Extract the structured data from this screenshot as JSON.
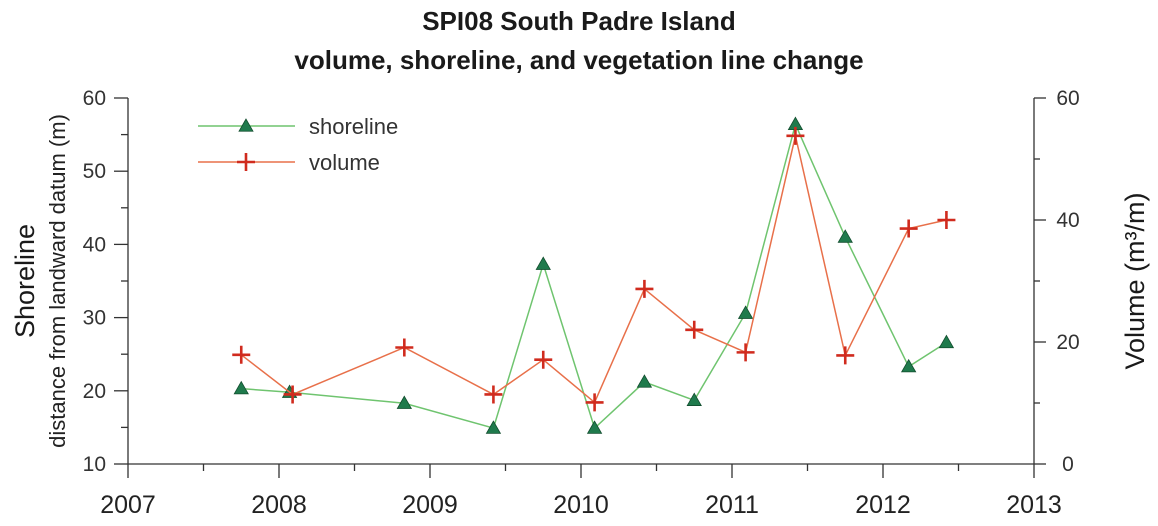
{
  "chart_data": {
    "type": "line",
    "title": [
      "SPI08 South Padre Island",
      "volume, shoreline, and vegetation line change"
    ],
    "ylabel_left": "Shoreline",
    "ylabel_left_sub": "distance from landward datum (m)",
    "ylabel_right": "Volume (m³/m)",
    "xlim": [
      2007,
      2013
    ],
    "ylim_left": [
      10,
      60
    ],
    "ylim_right": [
      0,
      60
    ],
    "x_ticks": [
      "2007",
      "2008",
      "2009",
      "2010",
      "2011",
      "2012",
      "2013"
    ],
    "y_ticks_left": [
      "10",
      "20",
      "30",
      "40",
      "50",
      "60"
    ],
    "y_ticks_right": [
      "0",
      "20",
      "40",
      "60"
    ],
    "grid": false,
    "legend_position": "top-left",
    "series": [
      {
        "name": "shoreline",
        "axis": "left",
        "marker": "triangle",
        "line_color": "#6fc46f",
        "marker_color": "#1f7a4c",
        "x": [
          2007.75,
          2008.07,
          2008.83,
          2009.42,
          2009.75,
          2010.09,
          2010.42,
          2010.75,
          2011.09,
          2011.42,
          2011.75,
          2012.17,
          2012.42
        ],
        "y": [
          20.3,
          19.8,
          18.3,
          14.9,
          37.3,
          14.9,
          21.2,
          18.7,
          30.6,
          56.4,
          41.0,
          23.3,
          26.6
        ]
      },
      {
        "name": "volume",
        "axis": "right",
        "marker": "plus",
        "line_color": "#e8704a",
        "marker_color": "#d02b1e",
        "x": [
          2007.75,
          2008.09,
          2008.83,
          2009.42,
          2009.75,
          2010.09,
          2010.42,
          2010.75,
          2011.09,
          2011.42,
          2011.75,
          2012.17,
          2012.42
        ],
        "y": [
          17.9,
          11.4,
          19.1,
          11.4,
          17.1,
          10.1,
          28.7,
          22.0,
          18.3,
          53.8,
          17.8,
          38.6,
          40.0
        ]
      }
    ]
  }
}
